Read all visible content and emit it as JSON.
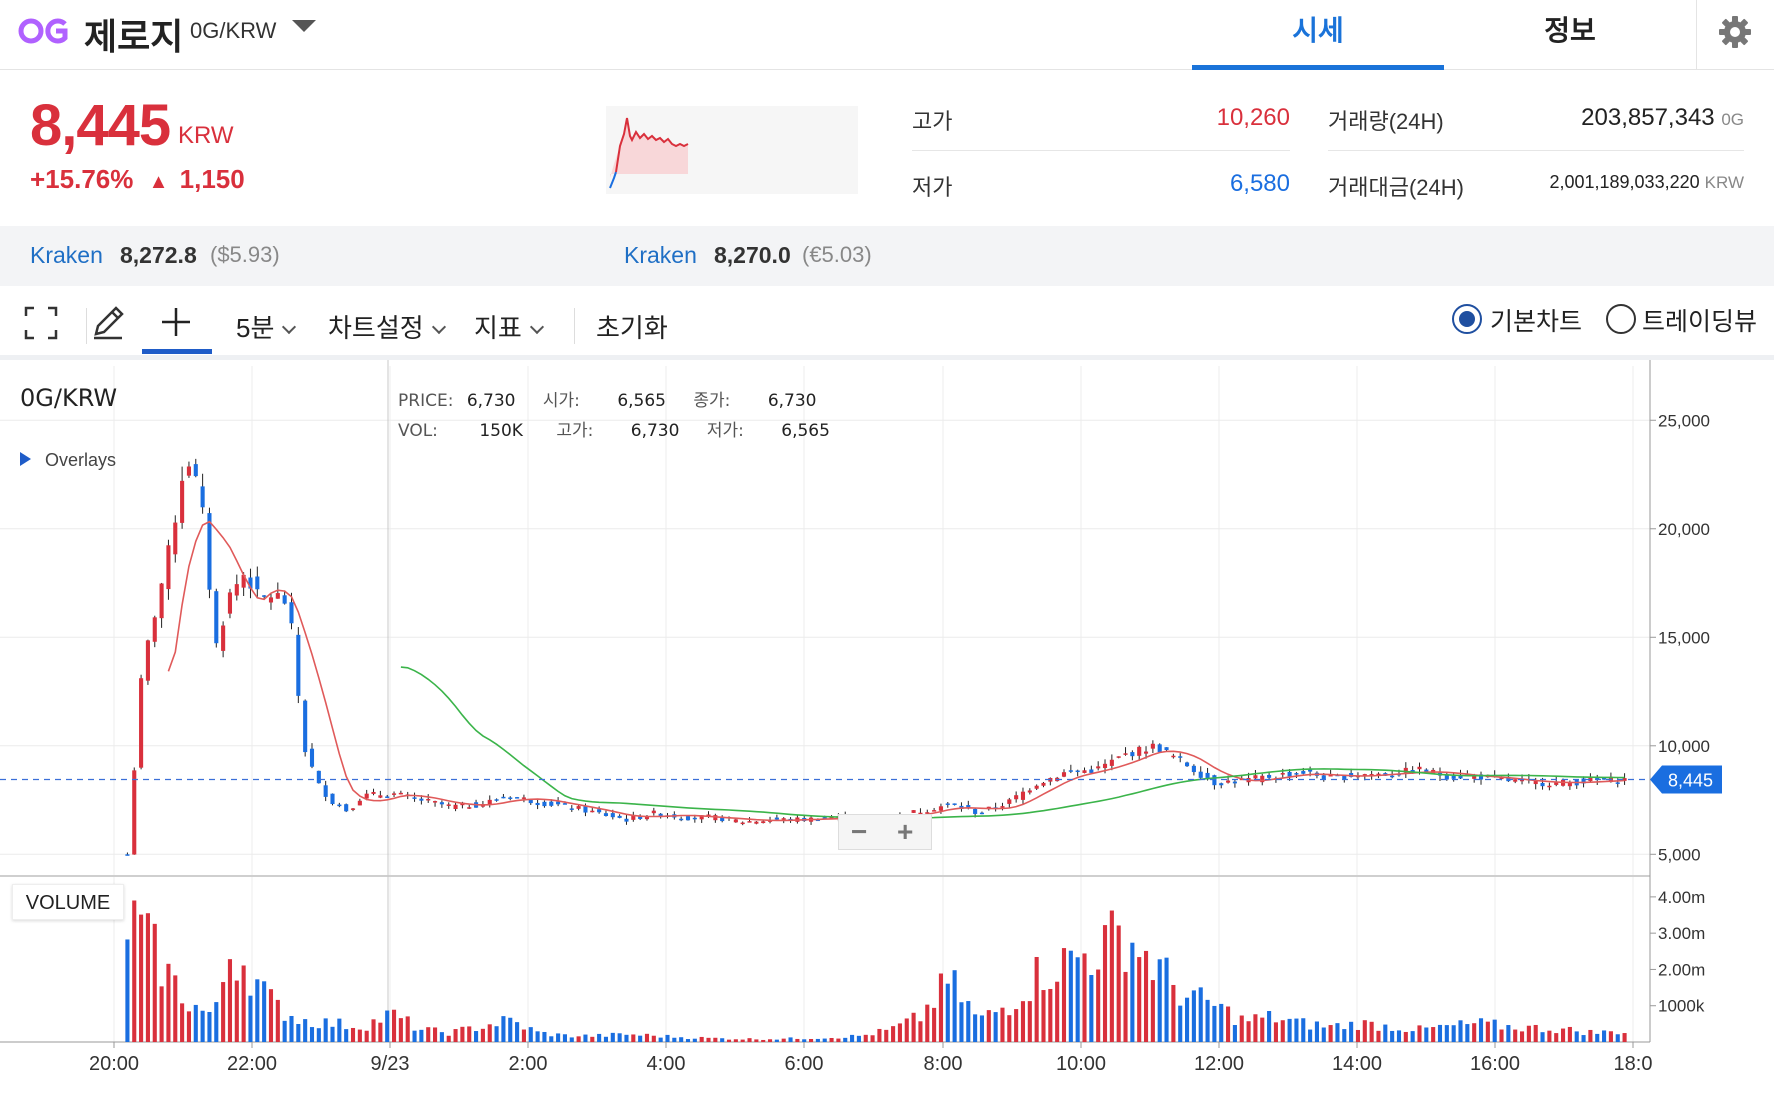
{
  "header": {
    "coin_name": "제로지",
    "pair": "0G/KRW",
    "tabs": [
      "시세",
      "정보"
    ]
  },
  "price": {
    "current": "8,445",
    "unit": "KRW",
    "change_pct": "+15.76%",
    "change_abs": "1,150"
  },
  "stats": {
    "high_label": "고가",
    "high": "10,260",
    "low_label": "저가",
    "low": "6,580",
    "volume_label": "거래량(24H)",
    "volume": "203,857,343",
    "volume_unit": "0G",
    "amount_label": "거래대금(24H)",
    "amount": "2,001,189,033,220",
    "amount_unit": "KRW"
  },
  "exchanges": [
    {
      "name": "Kraken",
      "price": "8,272.8",
      "fx": "($5.93)"
    },
    {
      "name": "Kraken",
      "price": "8,270.0",
      "fx": "(€5.03)"
    }
  ],
  "toolbar": {
    "interval": "5분",
    "chart_settings": "차트설정",
    "indicators": "지표",
    "reset": "초기화",
    "radio_basic": "기본차트",
    "radio_tradingview": "트레이딩뷰"
  },
  "chart": {
    "pair_tag": "0G/KRW",
    "overlays": "Overlays",
    "volume_tag": "VOLUME",
    "legend": {
      "price_label": "PRICE:",
      "price": "6,730",
      "open_label": "시가:",
      "open": "6,565",
      "close_label": "종가:",
      "close": "6,730",
      "vol_label": "VOL:",
      "vol": "150K",
      "high_label": "고가:",
      "high": "6,730",
      "low_label": "저가:",
      "low": "6,565"
    },
    "last_price_tag": "8,445",
    "zoom_minus": "−",
    "zoom_plus": "+"
  },
  "chart_data": {
    "type": "candlestick",
    "xlabel": "",
    "ylabel": "",
    "x_ticks": [
      "20:00",
      "22:00",
      "9/23",
      "2:00",
      "4:00",
      "6:00",
      "8:00",
      "10:00",
      "12:00",
      "14:00",
      "16:00",
      "18:0"
    ],
    "y_ticks": [
      "25,000",
      "20,000",
      "15,000",
      "10,000",
      "5,000"
    ],
    "y_tick_values": [
      25000,
      20000,
      15000,
      10000,
      5000
    ],
    "ylim": [
      4000,
      27500
    ],
    "volume_ticks": [
      "4.00m",
      "3.00m",
      "2.00m",
      "1000k"
    ],
    "volume_tick_values": [
      4000000,
      3000000,
      2000000,
      1000000
    ],
    "volume_ylim": [
      0,
      4300000
    ],
    "last_price": 8445,
    "series_colors": {
      "up": "#d9303c",
      "down": "#1a6ee0",
      "ma_short": "#e05a5a",
      "ma_long": "#3bb44a"
    },
    "anchor_prices": [
      [
        0,
        5000
      ],
      [
        1,
        13500
      ],
      [
        2,
        16500
      ],
      [
        3,
        19500
      ],
      [
        4,
        23500
      ],
      [
        5,
        21500
      ],
      [
        6,
        14500
      ],
      [
        7,
        17000
      ],
      [
        8,
        18000
      ],
      [
        9,
        16700
      ],
      [
        10,
        17000
      ],
      [
        11,
        16500
      ],
      [
        12,
        10000
      ],
      [
        13,
        8200
      ],
      [
        14,
        7400
      ],
      [
        15,
        7000
      ],
      [
        16,
        7700
      ],
      [
        18,
        7800
      ],
      [
        20,
        7500
      ],
      [
        22,
        7200
      ],
      [
        24,
        7300
      ],
      [
        26,
        7700
      ],
      [
        28,
        7400
      ],
      [
        30,
        7200
      ],
      [
        32,
        6900
      ],
      [
        34,
        6600
      ],
      [
        36,
        6900
      ],
      [
        38,
        6700
      ],
      [
        40,
        6700
      ],
      [
        42,
        6500
      ],
      [
        44,
        6600
      ],
      [
        46,
        6600
      ],
      [
        48,
        6700
      ],
      [
        50,
        6600
      ],
      [
        52,
        6700
      ],
      [
        54,
        7000
      ],
      [
        56,
        7300
      ],
      [
        58,
        6900
      ],
      [
        60,
        7400
      ],
      [
        62,
        8300
      ],
      [
        64,
        8800
      ],
      [
        66,
        8900
      ],
      [
        68,
        9600
      ],
      [
        70,
        10000
      ],
      [
        72,
        9200
      ],
      [
        74,
        8300
      ],
      [
        76,
        8400
      ],
      [
        78,
        8600
      ],
      [
        80,
        8800
      ],
      [
        82,
        8500
      ],
      [
        84,
        8700
      ],
      [
        86,
        8700
      ],
      [
        88,
        8900
      ],
      [
        90,
        8600
      ],
      [
        92,
        8600
      ],
      [
        94,
        8400
      ],
      [
        96,
        8300
      ],
      [
        98,
        8300
      ],
      [
        100,
        8400
      ],
      [
        102,
        8445
      ]
    ],
    "anchor_volumes": [
      [
        0,
        4000000
      ],
      [
        1,
        3500000
      ],
      [
        2,
        2800000
      ],
      [
        3,
        2000000
      ],
      [
        4,
        1400000
      ],
      [
        5,
        1000000
      ],
      [
        6,
        900000
      ],
      [
        7,
        3000000
      ],
      [
        8,
        2600000
      ],
      [
        9,
        1800000
      ],
      [
        10,
        1200000
      ],
      [
        11,
        900000
      ],
      [
        12,
        700000
      ],
      [
        14,
        600000
      ],
      [
        16,
        500000
      ],
      [
        18,
        900000
      ],
      [
        20,
        400000
      ],
      [
        22,
        300000
      ],
      [
        24,
        500000
      ],
      [
        26,
        700000
      ],
      [
        28,
        300000
      ],
      [
        30,
        200000
      ],
      [
        32,
        200000
      ],
      [
        34,
        250000
      ],
      [
        36,
        200000
      ],
      [
        38,
        150000
      ],
      [
        40,
        120000
      ],
      [
        42,
        100000
      ],
      [
        44,
        100000
      ],
      [
        46,
        120000
      ],
      [
        48,
        150000
      ],
      [
        50,
        200000
      ],
      [
        52,
        400000
      ],
      [
        54,
        800000
      ],
      [
        56,
        2000000
      ],
      [
        58,
        700000
      ],
      [
        60,
        1200000
      ],
      [
        62,
        2200000
      ],
      [
        64,
        2600000
      ],
      [
        66,
        3000000
      ],
      [
        68,
        3500000
      ],
      [
        70,
        2500000
      ],
      [
        72,
        1500000
      ],
      [
        74,
        1200000
      ],
      [
        76,
        700000
      ],
      [
        78,
        800000
      ],
      [
        80,
        600000
      ],
      [
        82,
        500000
      ],
      [
        84,
        600000
      ],
      [
        86,
        500000
      ],
      [
        88,
        400000
      ],
      [
        90,
        500000
      ],
      [
        92,
        600000
      ],
      [
        94,
        500000
      ],
      [
        96,
        450000
      ],
      [
        98,
        400000
      ],
      [
        100,
        300000
      ],
      [
        102,
        350000
      ]
    ]
  }
}
